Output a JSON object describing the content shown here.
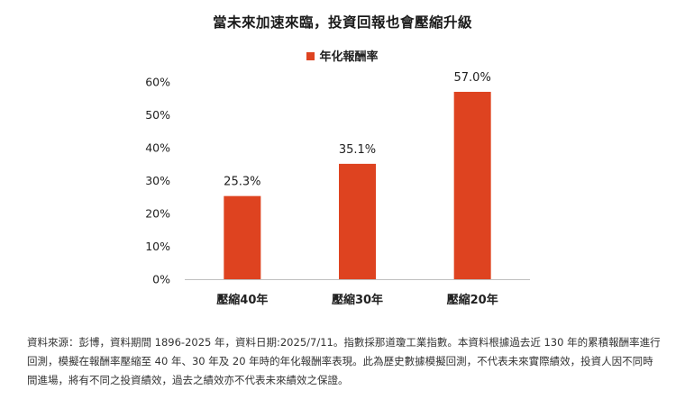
{
  "colors": {
    "bar": "#de4320",
    "axis": "#bfbfbf",
    "text": "#222222"
  },
  "chart_data": {
    "type": "bar",
    "title": "當未來加速來臨，投資回報也會壓縮升級",
    "categories": [
      "壓縮40年",
      "壓縮30年",
      "壓縮20年"
    ],
    "series": [
      {
        "name": "年化報酬率",
        "values": [
          25.3,
          35.1,
          57.0
        ]
      }
    ],
    "data_labels": [
      "25.3%",
      "35.1%",
      "57.0%"
    ],
    "y_ticks": [
      0,
      10,
      20,
      30,
      40,
      50,
      60
    ],
    "y_tick_labels": [
      "0%",
      "10%",
      "20%",
      "30%",
      "40%",
      "50%",
      "60%"
    ],
    "ylim": [
      0,
      60
    ],
    "xlabel": "",
    "ylabel": "",
    "grid": false,
    "legend_position": "top"
  },
  "footnote": "資料來源：彭博，資料期間 1896-2025 年，資料日期:2025/7/11。指數採那道瓊工業指數。本資料根據過去近 130 年的累積報酬率進行回測，模擬在報酬率壓縮至 40 年、30 年及 20 年時的年化報酬率表現。此為歷史數據模擬回測，不代表未來實際績效，投資人因不同時間進場，將有不同之投資績效，過去之績效亦不代表未來績效之保證。"
}
